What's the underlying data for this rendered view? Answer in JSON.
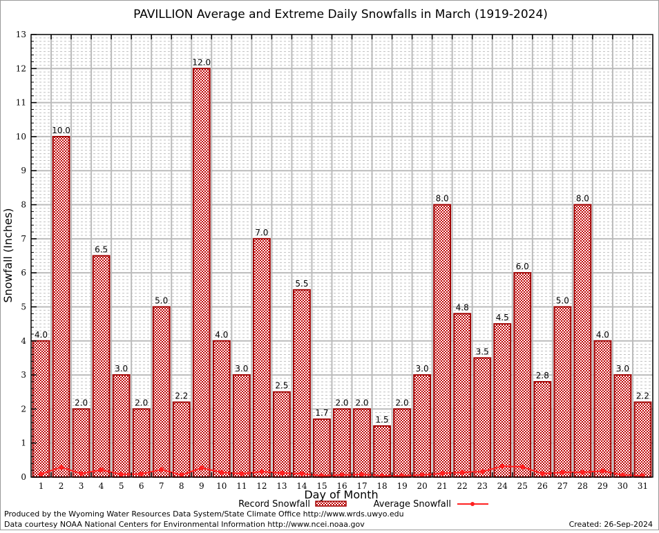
{
  "chart_data": {
    "type": "bar",
    "title": "PAVILLION Average and Extreme Daily Snowfalls in March (1919-2024)",
    "xlabel": "Day of Month",
    "ylabel": "Snowfall (Inches)",
    "ylim": [
      0,
      13
    ],
    "grid": true,
    "legend_placement": "bottom",
    "categories": [
      "1",
      "2",
      "3",
      "4",
      "5",
      "6",
      "7",
      "8",
      "9",
      "10",
      "11",
      "12",
      "13",
      "14",
      "15",
      "16",
      "17",
      "18",
      "19",
      "20",
      "21",
      "22",
      "23",
      "24",
      "25",
      "26",
      "27",
      "28",
      "29",
      "30",
      "31"
    ],
    "yticks": [
      "0",
      "1",
      "2",
      "3",
      "4",
      "5",
      "6",
      "7",
      "8",
      "9",
      "10",
      "11",
      "12",
      "13"
    ],
    "series": [
      {
        "name": "Record Snowfall",
        "type": "bar",
        "color": "#a00000",
        "values": [
          4.0,
          10.0,
          2.0,
          6.5,
          3.0,
          2.0,
          5.0,
          2.2,
          12.0,
          4.0,
          3.0,
          7.0,
          2.5,
          5.5,
          1.7,
          2.0,
          2.0,
          1.5,
          2.0,
          3.0,
          8.0,
          4.8,
          3.5,
          4.5,
          6.0,
          2.8,
          5.0,
          8.0,
          4.0,
          3.0,
          2.2
        ],
        "labels": [
          "4.0",
          "10.0",
          "2.0",
          "6.5",
          "3.0",
          "2.0",
          "5.0",
          "2.2",
          "12.0",
          "4.0",
          "3.0",
          "7.0",
          "2.5",
          "5.5",
          "1.7",
          "2.0",
          "2.0",
          "1.5",
          "2.0",
          "3.0",
          "8.0",
          "4.8",
          "3.5",
          "4.5",
          "6.0",
          "2.8",
          "5.0",
          "8.0",
          "4.0",
          "3.0",
          "2.2"
        ]
      },
      {
        "name": "Average Snowfall",
        "type": "line",
        "color": "#ff2020",
        "values": [
          0.09,
          0.29,
          0.1,
          0.21,
          0.08,
          0.09,
          0.22,
          0.06,
          0.27,
          0.14,
          0.1,
          0.16,
          0.12,
          0.1,
          0.04,
          0.06,
          0.08,
          0.04,
          0.04,
          0.06,
          0.11,
          0.14,
          0.16,
          0.32,
          0.3,
          0.1,
          0.14,
          0.14,
          0.18,
          0.06,
          0.04
        ]
      }
    ]
  },
  "footer": {
    "line1": "Produced by the Wyoming Water Resources Data System/State Climate Office http://www.wrds.uwyo.edu",
    "line2": "Data courtesy NOAA National Centers for Environmental Information http://www.ncei.noaa.gov",
    "created": "Created: 26-Sep-2024"
  }
}
